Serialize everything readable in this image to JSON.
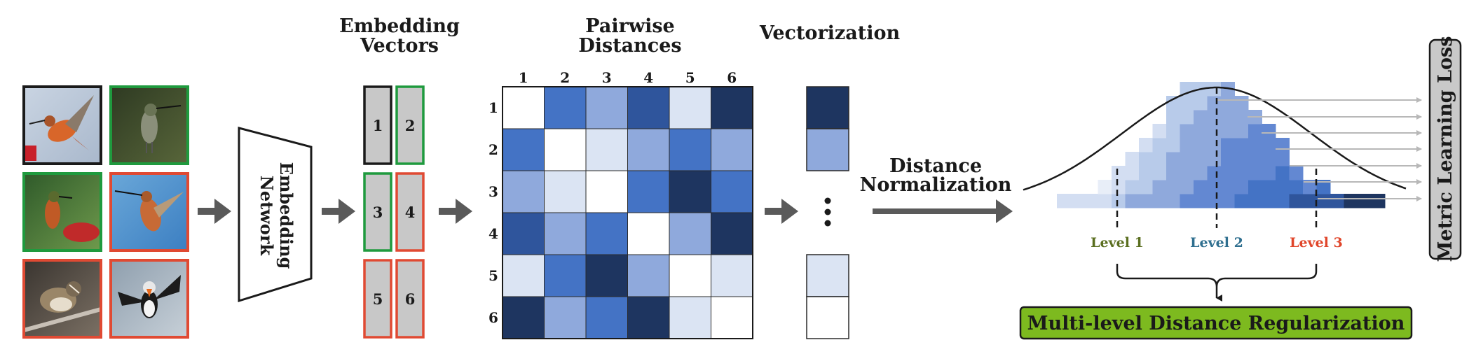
{
  "headings": {
    "embedding_vectors": [
      "Embedding",
      "Vectors"
    ],
    "pairwise_distances": [
      "Pairwise",
      "Distances"
    ],
    "vectorization": "Vectorization"
  },
  "network_label": [
    "Embedding",
    "Network"
  ],
  "distance_normalization": [
    "Distance",
    "Normalization"
  ],
  "metric_loss_label": "Metric Learning Loss",
  "regularization_label": "Multi-level Distance Regularization",
  "levels": [
    {
      "label": "Level 1",
      "color": "#5a6e1f"
    },
    {
      "label": "Level 2",
      "color": "#2f6f8f"
    },
    {
      "label": "Level 3",
      "color": "#e0452a"
    }
  ],
  "images": [
    {
      "name": "hummingbird-rufous-flying",
      "border": "#1a1a1a"
    },
    {
      "name": "hummingbird-perched",
      "border": "#1f9a3e"
    },
    {
      "name": "hummingbird-at-feeder",
      "border": "#1f9a3e"
    },
    {
      "name": "hummingbird-sky",
      "border": "#e04a33"
    },
    {
      "name": "sparrow-on-branch",
      "border": "#e04a33"
    },
    {
      "name": "puffin-flying",
      "border": "#e04a33"
    }
  ],
  "vectors": [
    {
      "label": "1",
      "border": "#1a1a1a"
    },
    {
      "label": "2",
      "border": "#1f9a3e"
    },
    {
      "label": "3",
      "border": "#1f9a3e"
    },
    {
      "label": "4",
      "border": "#e04a33"
    },
    {
      "label": "5",
      "border": "#e04a33"
    },
    {
      "label": "6",
      "border": "#e04a33"
    }
  ],
  "matrix": {
    "row_labels": [
      "1",
      "2",
      "3",
      "4",
      "5",
      "6"
    ],
    "col_labels": [
      "1",
      "2",
      "3",
      "4",
      "5",
      "6"
    ],
    "levels": [
      [
        0,
        3,
        2,
        4,
        1,
        5
      ],
      [
        3,
        0,
        1,
        2,
        3,
        2
      ],
      [
        2,
        1,
        0,
        3,
        5,
        3
      ],
      [
        4,
        2,
        3,
        0,
        2,
        5
      ],
      [
        1,
        3,
        5,
        2,
        0,
        1
      ],
      [
        5,
        2,
        3,
        5,
        1,
        0
      ]
    ],
    "palette": [
      "#ffffff",
      "#dbe4f3",
      "#8fa9dc",
      "#4473c5",
      "#2f559c",
      "#1e3560"
    ]
  },
  "vectorization_cells": [
    "#1e3560",
    "#8fa9dc",
    "#dbe4f3",
    "#ffffff"
  ],
  "colors": {
    "arrow": "#5a5a5a",
    "regularization_fill": "#7dba1f",
    "metric_loss_fill": "#c9c9c9",
    "vector_fill": "#c8c8c8"
  }
}
